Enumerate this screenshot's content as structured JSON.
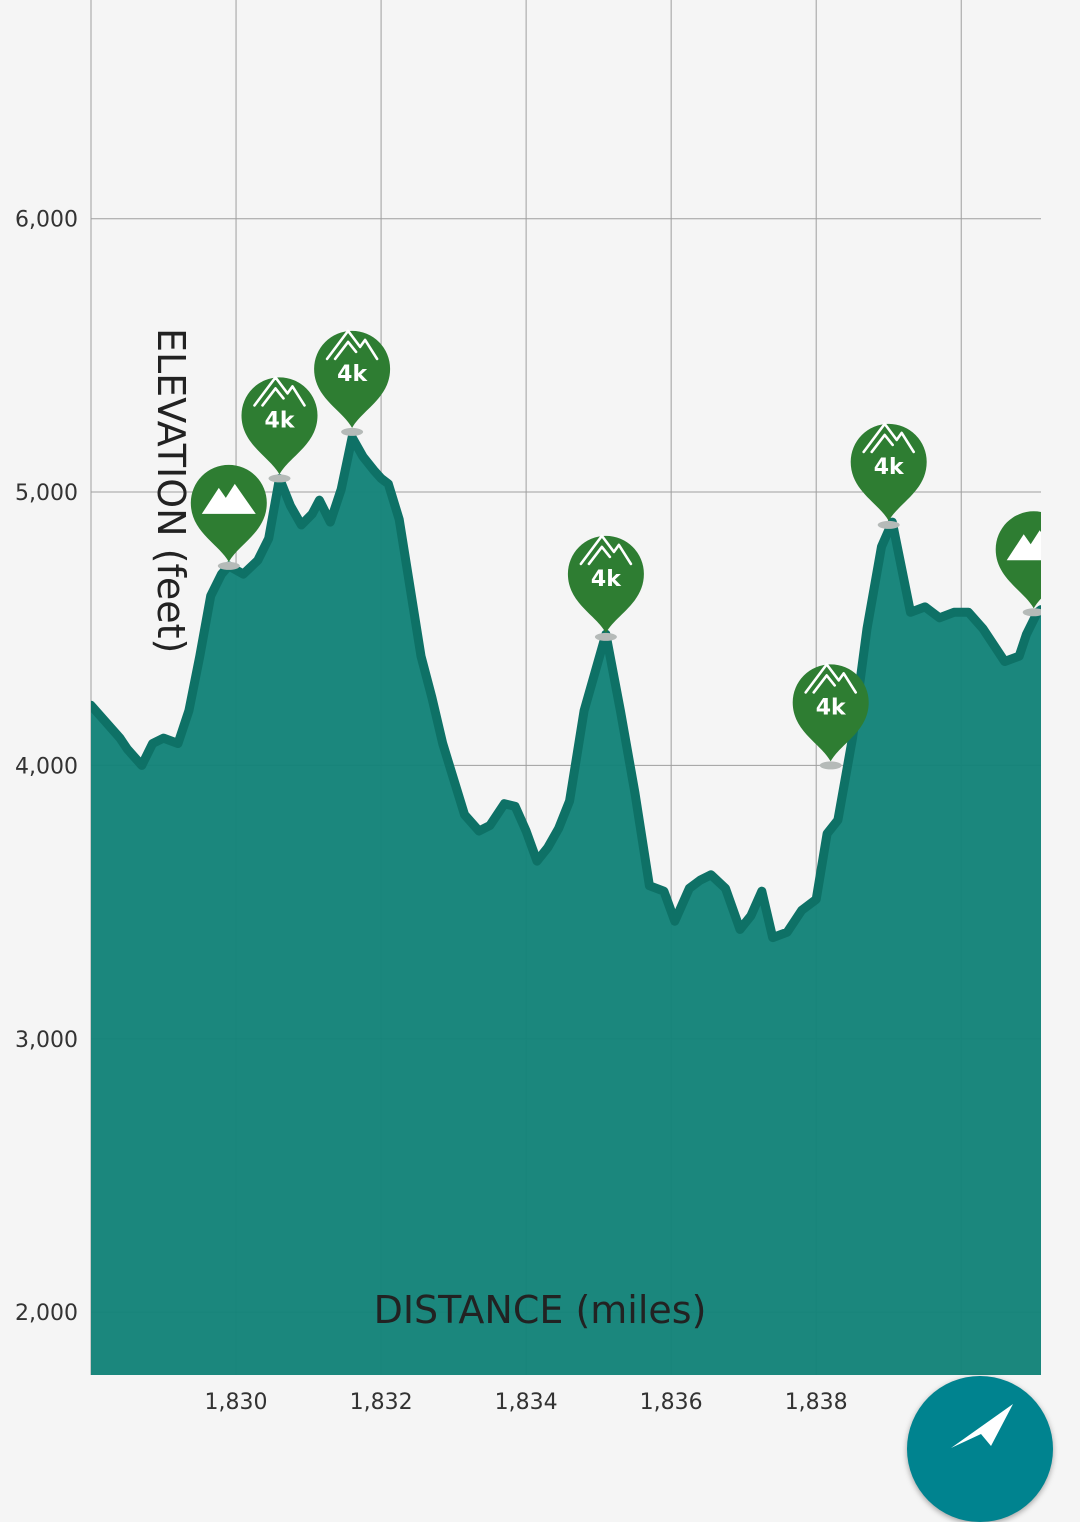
{
  "chart_data": {
    "type": "area",
    "xlabel": "DISTANCE (miles)",
    "ylabel": "ELEVATION (feet)",
    "xlim": [
      1828,
      1841.1
    ],
    "ylim": [
      1770,
      6800
    ],
    "x_ticks": [
      1830,
      1832,
      1834,
      1836,
      1838,
      1840
    ],
    "x_tick_labels": [
      "1,830",
      "1,832",
      "1,834",
      "1,836",
      "1,838",
      ""
    ],
    "y_ticks": [
      2000,
      3000,
      4000,
      5000,
      6000
    ],
    "y_tick_labels": [
      "2,000",
      "3,000",
      "4,000",
      "5,000",
      "6,000"
    ],
    "grid": true,
    "colors": {
      "fill": "#148379",
      "line": "#0e7166",
      "pin": "#2e7d32",
      "fab": "#00838f"
    },
    "series": [
      {
        "values": [
          [
            1828.0,
            4220
          ],
          [
            1828.2,
            4160
          ],
          [
            1828.4,
            4100
          ],
          [
            1828.5,
            4060
          ],
          [
            1828.7,
            4000
          ],
          [
            1828.85,
            4080
          ],
          [
            1829.0,
            4100
          ],
          [
            1829.2,
            4080
          ],
          [
            1829.35,
            4200
          ],
          [
            1829.5,
            4400
          ],
          [
            1829.65,
            4620
          ],
          [
            1829.8,
            4700
          ],
          [
            1829.9,
            4730
          ],
          [
            1830.1,
            4700
          ],
          [
            1830.3,
            4750
          ],
          [
            1830.45,
            4830
          ],
          [
            1830.6,
            5050
          ],
          [
            1830.75,
            4950
          ],
          [
            1830.9,
            4880
          ],
          [
            1831.05,
            4920
          ],
          [
            1831.15,
            4970
          ],
          [
            1831.3,
            4890
          ],
          [
            1831.45,
            5010
          ],
          [
            1831.6,
            5200
          ],
          [
            1831.75,
            5130
          ],
          [
            1831.9,
            5080
          ],
          [
            1832.0,
            5050
          ],
          [
            1832.1,
            5030
          ],
          [
            1832.25,
            4900
          ],
          [
            1832.4,
            4650
          ],
          [
            1832.55,
            4400
          ],
          [
            1832.7,
            4250
          ],
          [
            1832.85,
            4080
          ],
          [
            1833.0,
            3950
          ],
          [
            1833.15,
            3820
          ],
          [
            1833.35,
            3760
          ],
          [
            1833.5,
            3780
          ],
          [
            1833.7,
            3860
          ],
          [
            1833.85,
            3850
          ],
          [
            1834.0,
            3760
          ],
          [
            1834.15,
            3650
          ],
          [
            1834.3,
            3700
          ],
          [
            1834.45,
            3770
          ],
          [
            1834.6,
            3870
          ],
          [
            1834.8,
            4200
          ],
          [
            1835.1,
            4480
          ],
          [
            1835.3,
            4200
          ],
          [
            1835.5,
            3900
          ],
          [
            1835.7,
            3560
          ],
          [
            1835.9,
            3540
          ],
          [
            1836.05,
            3430
          ],
          [
            1836.25,
            3550
          ],
          [
            1836.4,
            3580
          ],
          [
            1836.55,
            3600
          ],
          [
            1836.75,
            3550
          ],
          [
            1836.95,
            3400
          ],
          [
            1837.1,
            3450
          ],
          [
            1837.25,
            3540
          ],
          [
            1837.4,
            3370
          ],
          [
            1837.6,
            3390
          ],
          [
            1837.8,
            3470
          ],
          [
            1838.0,
            3510
          ],
          [
            1838.15,
            3750
          ],
          [
            1838.3,
            3800
          ],
          [
            1838.5,
            4100
          ],
          [
            1838.7,
            4500
          ],
          [
            1838.9,
            4800
          ],
          [
            1839.05,
            4890
          ],
          [
            1839.3,
            4560
          ],
          [
            1839.5,
            4580
          ],
          [
            1839.7,
            4540
          ],
          [
            1839.9,
            4560
          ],
          [
            1840.1,
            4560
          ],
          [
            1840.3,
            4500
          ],
          [
            1840.6,
            4380
          ],
          [
            1840.8,
            4400
          ],
          [
            1840.9,
            4480
          ],
          [
            1841.05,
            4560
          ],
          [
            1841.1,
            4570
          ]
        ]
      }
    ],
    "peaks": [
      {
        "x": 1829.9,
        "y": 4730,
        "kind": "summit"
      },
      {
        "x": 1830.6,
        "y": 5050,
        "kind": "4k",
        "label": "4k"
      },
      {
        "x": 1831.6,
        "y": 5220,
        "kind": "4k",
        "label": "4k"
      },
      {
        "x": 1835.1,
        "y": 4470,
        "kind": "4k",
        "label": "4k"
      },
      {
        "x": 1838.2,
        "y": 4000,
        "kind": "4k",
        "label": "4k"
      },
      {
        "x": 1839.0,
        "y": 4880,
        "kind": "4k",
        "label": "4k"
      },
      {
        "x": 1841.0,
        "y": 4560,
        "kind": "summit"
      }
    ]
  },
  "fab": {
    "icon": "navigation-arrow-icon"
  }
}
